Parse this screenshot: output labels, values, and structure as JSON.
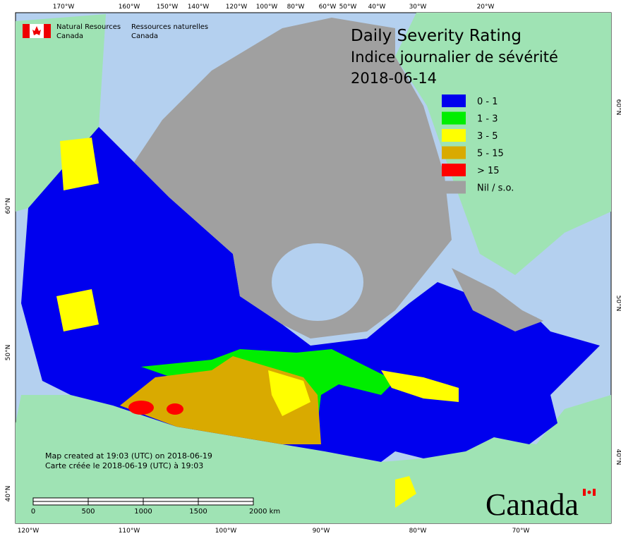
{
  "header": {
    "agency_en": [
      "Natural Resources",
      "Canada"
    ],
    "agency_fr": [
      "Ressources naturelles",
      "Canada"
    ]
  },
  "title": [
    "Daily Severity Rating",
    "Indice journalier de sévérité",
    "2018-06-14"
  ],
  "legend": [
    {
      "label": "0 - 1",
      "color": "#0000ee"
    },
    {
      "label": "1 - 3",
      "color": "#00ee00"
    },
    {
      "label": "3 - 5",
      "color": "#ffff00"
    },
    {
      "label": "5 - 15",
      "color": "#d9aa00"
    },
    {
      "label": "> 15",
      "color": "#ff0000"
    },
    {
      "label": "Nil / s.o.",
      "color": "#a0a0a0"
    }
  ],
  "top_longitudes": [
    "170°W",
    "160°W",
    "150°W",
    "140°W",
    "120°W",
    "100°W",
    "80°W",
    "60°W",
    "50°W",
    "40°W",
    "30°W",
    "20°W"
  ],
  "bottom_longitudes": [
    "120°W",
    "110°W",
    "100°W",
    "90°W",
    "80°W",
    "70°W"
  ],
  "left_latitudes": [
    "60°N",
    "50°N",
    "40°N"
  ],
  "right_latitudes": [
    "60°N",
    "50°N",
    "40°N"
  ],
  "footer": [
    "Map created at 19:03 (UTC) on 2018-06-19",
    "Carte créée le 2018-06-19 (UTC) à 19:03"
  ],
  "scale": [
    "0",
    "500",
    "1000",
    "1500",
    "2000 km"
  ],
  "wordmark": "Canada"
}
